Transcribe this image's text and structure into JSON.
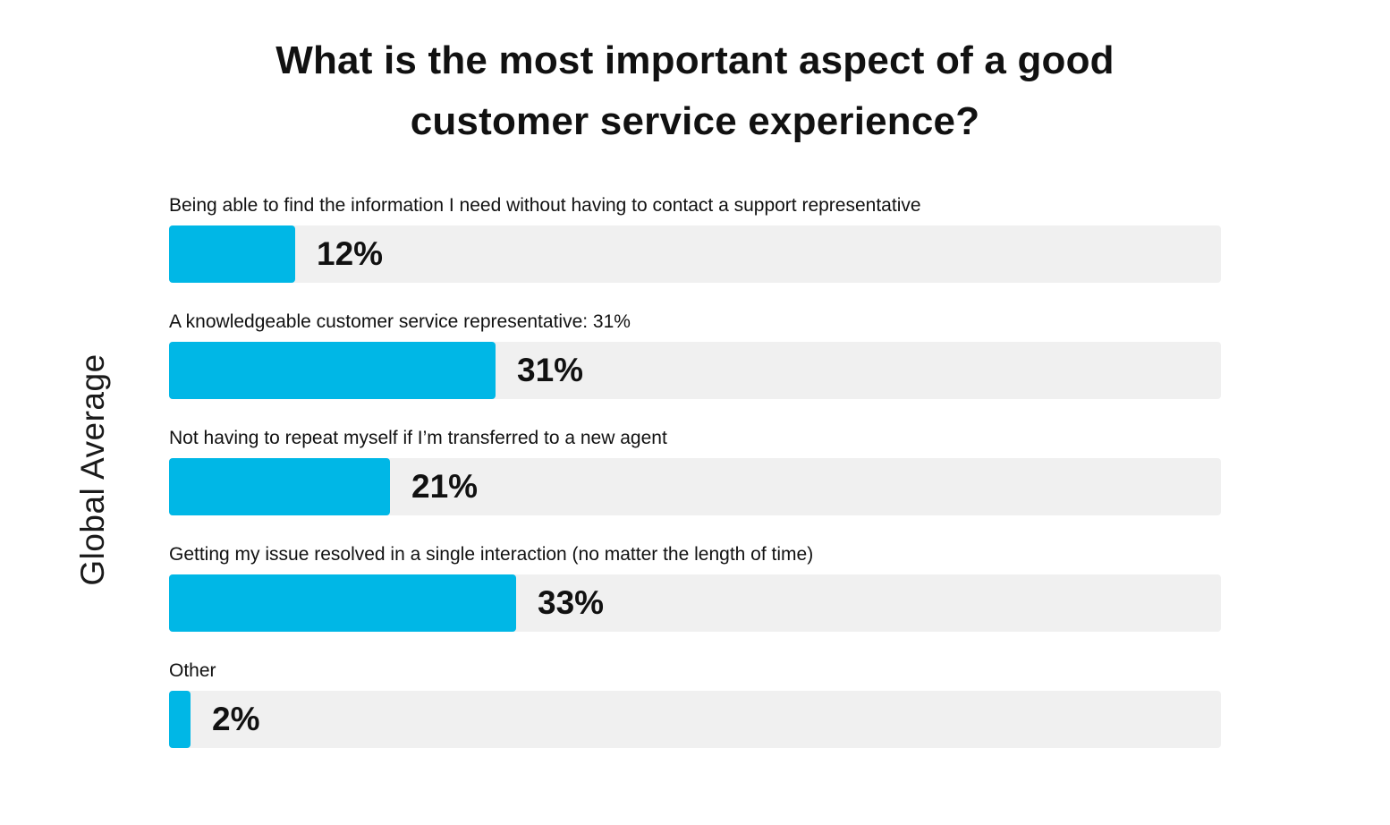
{
  "chart_data": {
    "type": "bar",
    "orientation": "horizontal",
    "title": "What is the most important aspect of a good customer service experience?",
    "title_lines": [
      "What is the most important aspect of a good",
      "customer service experience?"
    ],
    "side_label": "Global Average",
    "xlim": [
      0,
      100
    ],
    "bar_color": "#00B7E6",
    "track_color": "#F0F0F0",
    "categories": [
      "Being able to find the information I need without having to contact a support representative",
      "A knowledgeable customer service representative: 31%",
      "Not having to repeat myself if I’m transferred to a new agent",
      "Getting my issue resolved in a single interaction (no matter the length of time)",
      "Other"
    ],
    "values": [
      12,
      31,
      21,
      33,
      2
    ],
    "value_labels": [
      "12%",
      "31%",
      "21%",
      "33%",
      "2%"
    ]
  }
}
